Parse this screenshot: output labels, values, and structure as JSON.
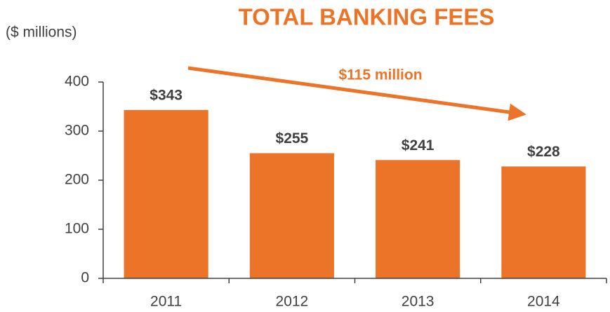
{
  "chart_data": {
    "type": "bar",
    "title": "TOTAL BANKING FEES",
    "y_axis_label": "($ millions)",
    "annotation": "$115 million",
    "categories": [
      "2011",
      "2012",
      "2013",
      "2014"
    ],
    "values": [
      343,
      255,
      241,
      228
    ],
    "value_labels": [
      "$343",
      "$255",
      "$241",
      "$228"
    ],
    "color": "#ec7429",
    "ylim": [
      0,
      400
    ],
    "yticks": [
      0,
      100,
      200,
      300,
      400
    ],
    "grid": false
  }
}
